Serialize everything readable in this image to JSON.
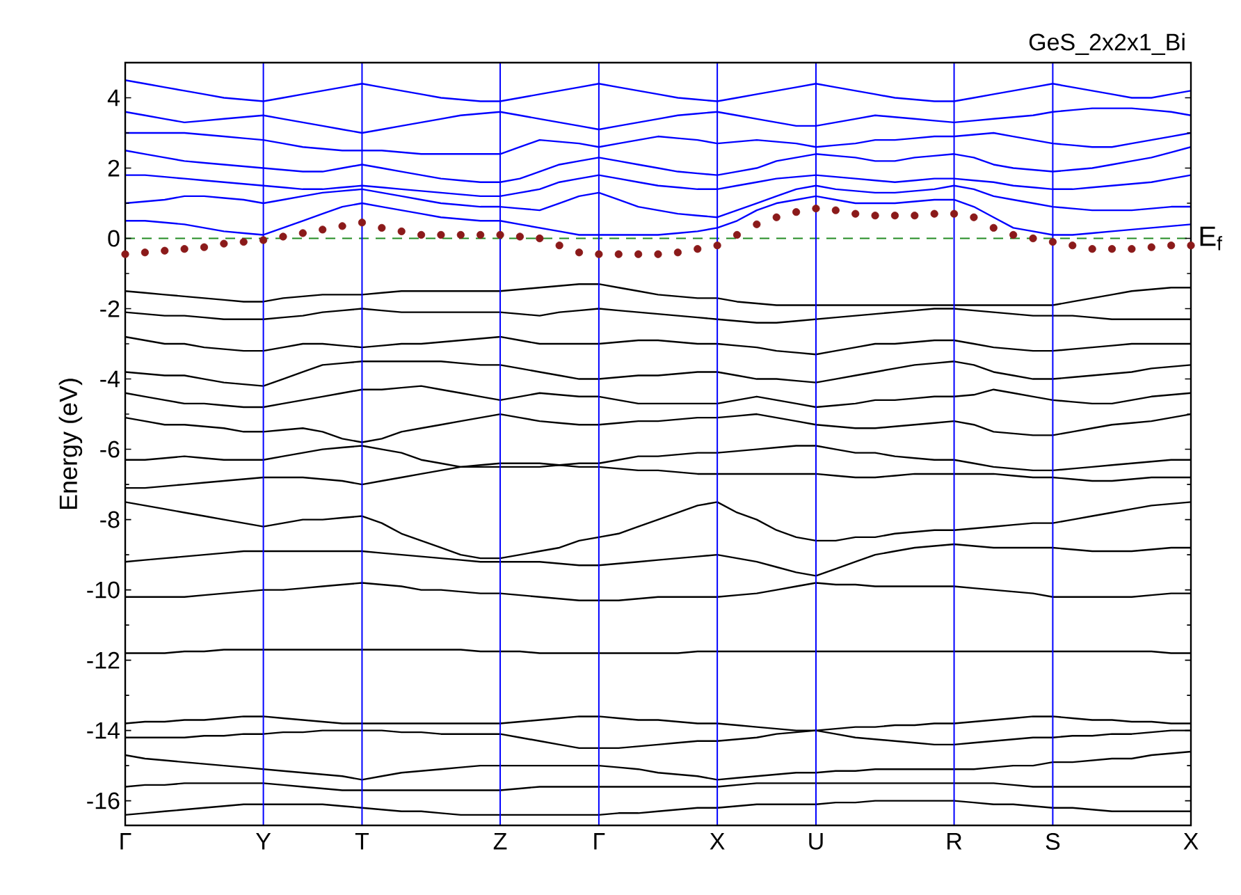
{
  "chart_data": {
    "type": "line",
    "title": "GeS_2x2x1_Bi",
    "ylabel": "Energy (eV)",
    "categories": [
      "Γ",
      null,
      null,
      null,
      null,
      null,
      null,
      "Y",
      null,
      null,
      null,
      null,
      "T",
      null,
      null,
      null,
      null,
      null,
      null,
      "Z",
      null,
      null,
      null,
      null,
      "Γ",
      null,
      null,
      null,
      null,
      null,
      "X",
      null,
      null,
      null,
      null,
      "U",
      null,
      null,
      null,
      null,
      null,
      null,
      "R",
      null,
      null,
      null,
      null,
      "S",
      null,
      null,
      null,
      null,
      null,
      null,
      "X"
    ],
    "ylim": [
      -16.7,
      5
    ],
    "yticks": [
      -16,
      -14,
      -12,
      -10,
      -8,
      -6,
      -4,
      -2,
      0,
      2,
      4
    ],
    "grid": "x",
    "ref_lines": [
      {
        "axis": "y",
        "value": 0,
        "label": "E$_{f}$",
        "color": "#228b22",
        "line_style": "dashed"
      }
    ],
    "series": [
      {
        "color": "#0000ff",
        "values": [
          0.5,
          0.5,
          0.45,
          0.4,
          0.3,
          0.2,
          0.15,
          0.1,
          0.3,
          0.5,
          0.7,
          0.9,
          1.0,
          0.9,
          0.8,
          0.7,
          0.6,
          0.55,
          0.5,
          0.5,
          0.4,
          0.3,
          0.2,
          0.1,
          0.1,
          0.1,
          0.1,
          0.1,
          0.15,
          0.2,
          0.3,
          0.5,
          0.8,
          1.0,
          1.1,
          1.2,
          1.1,
          1.0,
          1.0,
          1.0,
          1.05,
          1.1,
          1.1,
          0.9,
          0.6,
          0.3,
          0.2,
          0.1,
          0.1,
          0.15,
          0.2,
          0.25,
          0.3,
          0.35,
          0.4
        ]
      },
      {
        "color": "#0000ff",
        "values": [
          1.0,
          1.05,
          1.1,
          1.2,
          1.2,
          1.15,
          1.1,
          1.0,
          1.1,
          1.2,
          1.3,
          1.35,
          1.4,
          1.3,
          1.2,
          1.1,
          1.0,
          0.95,
          0.9,
          0.9,
          0.85,
          0.8,
          1.0,
          1.2,
          1.3,
          1.1,
          0.9,
          0.8,
          0.7,
          0.65,
          0.6,
          0.8,
          1.0,
          1.2,
          1.4,
          1.5,
          1.4,
          1.35,
          1.3,
          1.3,
          1.35,
          1.4,
          1.5,
          1.4,
          1.2,
          1.1,
          1.0,
          0.9,
          0.85,
          0.8,
          0.8,
          0.8,
          0.85,
          0.9,
          0.9
        ]
      },
      {
        "color": "#0000ff",
        "values": [
          1.8,
          1.8,
          1.75,
          1.7,
          1.65,
          1.6,
          1.55,
          1.5,
          1.45,
          1.4,
          1.4,
          1.45,
          1.5,
          1.45,
          1.4,
          1.35,
          1.3,
          1.25,
          1.2,
          1.2,
          1.3,
          1.4,
          1.6,
          1.7,
          1.8,
          1.7,
          1.6,
          1.5,
          1.45,
          1.4,
          1.4,
          1.5,
          1.6,
          1.7,
          1.75,
          1.8,
          1.75,
          1.7,
          1.65,
          1.6,
          1.65,
          1.7,
          1.7,
          1.65,
          1.6,
          1.5,
          1.45,
          1.4,
          1.4,
          1.45,
          1.5,
          1.55,
          1.6,
          1.7,
          1.8
        ]
      },
      {
        "color": "#0000ff",
        "values": [
          2.5,
          2.4,
          2.3,
          2.2,
          2.15,
          2.1,
          2.05,
          2.0,
          1.95,
          1.9,
          1.9,
          2.0,
          2.1,
          2.0,
          1.9,
          1.8,
          1.7,
          1.65,
          1.6,
          1.6,
          1.7,
          1.9,
          2.1,
          2.2,
          2.3,
          2.2,
          2.1,
          2.0,
          1.9,
          1.85,
          1.8,
          1.9,
          2.0,
          2.2,
          2.3,
          2.4,
          2.35,
          2.3,
          2.2,
          2.2,
          2.3,
          2.35,
          2.4,
          2.3,
          2.1,
          2.0,
          1.95,
          1.9,
          1.95,
          2.0,
          2.1,
          2.2,
          2.3,
          2.45,
          2.6
        ]
      },
      {
        "color": "#0000ff",
        "values": [
          3.0,
          3.0,
          3.0,
          3.0,
          2.95,
          2.9,
          2.85,
          2.8,
          2.7,
          2.6,
          2.55,
          2.5,
          2.5,
          2.5,
          2.45,
          2.4,
          2.4,
          2.4,
          2.4,
          2.4,
          2.6,
          2.8,
          2.75,
          2.7,
          2.6,
          2.7,
          2.8,
          2.9,
          2.85,
          2.8,
          2.7,
          2.75,
          2.8,
          2.75,
          2.7,
          2.6,
          2.65,
          2.7,
          2.8,
          2.8,
          2.85,
          2.9,
          2.9,
          2.95,
          3.0,
          2.9,
          2.8,
          2.7,
          2.65,
          2.6,
          2.6,
          2.7,
          2.8,
          2.9,
          3.0
        ]
      },
      {
        "color": "#0000ff",
        "values": [
          3.6,
          3.5,
          3.4,
          3.3,
          3.35,
          3.4,
          3.45,
          3.5,
          3.4,
          3.3,
          3.2,
          3.1,
          3.0,
          3.1,
          3.2,
          3.3,
          3.4,
          3.5,
          3.55,
          3.6,
          3.5,
          3.4,
          3.3,
          3.2,
          3.1,
          3.2,
          3.3,
          3.4,
          3.5,
          3.55,
          3.6,
          3.5,
          3.4,
          3.3,
          3.2,
          3.2,
          3.3,
          3.4,
          3.5,
          3.45,
          3.4,
          3.35,
          3.3,
          3.35,
          3.4,
          3.45,
          3.5,
          3.6,
          3.65,
          3.7,
          3.7,
          3.7,
          3.65,
          3.6,
          3.5
        ]
      },
      {
        "color": "#0000ff",
        "values": [
          4.5,
          4.4,
          4.3,
          4.2,
          4.1,
          4.0,
          3.95,
          3.9,
          4.0,
          4.1,
          4.2,
          4.3,
          4.4,
          4.3,
          4.2,
          4.1,
          4.0,
          3.95,
          3.9,
          3.9,
          4.0,
          4.1,
          4.2,
          4.3,
          4.4,
          4.3,
          4.2,
          4.1,
          4.0,
          3.95,
          3.9,
          4.0,
          4.1,
          4.2,
          4.3,
          4.4,
          4.3,
          4.2,
          4.1,
          4.0,
          3.95,
          3.9,
          3.9,
          4.0,
          4.1,
          4.2,
          4.3,
          4.4,
          4.3,
          4.2,
          4.1,
          4.0,
          4.0,
          4.1,
          4.2
        ]
      },
      {
        "color": "#000000",
        "values": [
          -1.5,
          -1.55,
          -1.6,
          -1.65,
          -1.7,
          -1.75,
          -1.8,
          -1.8,
          -1.7,
          -1.65,
          -1.6,
          -1.6,
          -1.6,
          -1.55,
          -1.5,
          -1.5,
          -1.5,
          -1.5,
          -1.5,
          -1.5,
          -1.45,
          -1.4,
          -1.35,
          -1.3,
          -1.3,
          -1.4,
          -1.5,
          -1.6,
          -1.65,
          -1.7,
          -1.7,
          -1.8,
          -1.85,
          -1.9,
          -1.9,
          -1.9,
          -1.9,
          -1.9,
          -1.9,
          -1.9,
          -1.9,
          -1.9,
          -1.9,
          -1.9,
          -1.9,
          -1.9,
          -1.9,
          -1.9,
          -1.8,
          -1.7,
          -1.6,
          -1.5,
          -1.45,
          -1.4,
          -1.4
        ]
      },
      {
        "color": "#000000",
        "values": [
          -2.1,
          -2.15,
          -2.2,
          -2.2,
          -2.25,
          -2.3,
          -2.3,
          -2.3,
          -2.25,
          -2.2,
          -2.1,
          -2.05,
          -2.0,
          -2.05,
          -2.1,
          -2.1,
          -2.1,
          -2.1,
          -2.1,
          -2.1,
          -2.15,
          -2.2,
          -2.1,
          -2.05,
          -2.0,
          -2.05,
          -2.1,
          -2.15,
          -2.2,
          -2.25,
          -2.3,
          -2.35,
          -2.4,
          -2.4,
          -2.35,
          -2.3,
          -2.25,
          -2.2,
          -2.15,
          -2.1,
          -2.05,
          -2.0,
          -2.0,
          -2.05,
          -2.1,
          -2.15,
          -2.2,
          -2.2,
          -2.2,
          -2.25,
          -2.3,
          -2.3,
          -2.3,
          -2.3,
          -2.3
        ]
      },
      {
        "color": "#000000",
        "values": [
          -2.8,
          -2.9,
          -3.0,
          -3.0,
          -3.1,
          -3.15,
          -3.2,
          -3.2,
          -3.1,
          -3.0,
          -3.0,
          -3.05,
          -3.1,
          -3.05,
          -3.0,
          -3.0,
          -2.95,
          -2.9,
          -2.85,
          -2.8,
          -2.9,
          -3.0,
          -3.0,
          -3.0,
          -3.0,
          -2.95,
          -2.9,
          -2.9,
          -2.95,
          -3.0,
          -3.0,
          -3.05,
          -3.1,
          -3.2,
          -3.25,
          -3.3,
          -3.2,
          -3.1,
          -3.0,
          -3.0,
          -2.95,
          -2.9,
          -2.9,
          -3.0,
          -3.1,
          -3.15,
          -3.2,
          -3.2,
          -3.15,
          -3.1,
          -3.05,
          -3.0,
          -3.0,
          -3.0,
          -3.0
        ]
      },
      {
        "color": "#000000",
        "values": [
          -3.8,
          -3.85,
          -3.9,
          -3.9,
          -4.0,
          -4.1,
          -4.15,
          -4.2,
          -4.0,
          -3.8,
          -3.6,
          -3.55,
          -3.5,
          -3.5,
          -3.5,
          -3.5,
          -3.5,
          -3.55,
          -3.6,
          -3.6,
          -3.7,
          -3.8,
          -3.9,
          -4.0,
          -4.0,
          -3.95,
          -3.9,
          -3.9,
          -3.85,
          -3.8,
          -3.8,
          -3.9,
          -4.0,
          -4.0,
          -4.05,
          -4.1,
          -4.0,
          -3.9,
          -3.8,
          -3.7,
          -3.6,
          -3.55,
          -3.5,
          -3.6,
          -3.8,
          -3.9,
          -4.0,
          -4.0,
          -3.95,
          -3.9,
          -3.85,
          -3.8,
          -3.7,
          -3.65,
          -3.6
        ]
      },
      {
        "color": "#000000",
        "values": [
          -4.4,
          -4.5,
          -4.6,
          -4.7,
          -4.7,
          -4.75,
          -4.8,
          -4.8,
          -4.7,
          -4.6,
          -4.5,
          -4.4,
          -4.3,
          -4.3,
          -4.25,
          -4.2,
          -4.3,
          -4.4,
          -4.5,
          -4.6,
          -4.5,
          -4.4,
          -4.45,
          -4.5,
          -4.5,
          -4.6,
          -4.7,
          -4.7,
          -4.7,
          -4.7,
          -4.7,
          -4.6,
          -4.5,
          -4.6,
          -4.7,
          -4.8,
          -4.75,
          -4.7,
          -4.6,
          -4.6,
          -4.55,
          -4.5,
          -4.5,
          -4.45,
          -4.3,
          -4.4,
          -4.5,
          -4.6,
          -4.65,
          -4.7,
          -4.7,
          -4.6,
          -4.5,
          -4.45,
          -4.4
        ]
      },
      {
        "color": "#000000",
        "values": [
          -5.1,
          -5.2,
          -5.3,
          -5.3,
          -5.35,
          -5.4,
          -5.5,
          -5.5,
          -5.45,
          -5.4,
          -5.5,
          -5.7,
          -5.8,
          -5.7,
          -5.5,
          -5.4,
          -5.3,
          -5.2,
          -5.1,
          -5.0,
          -5.1,
          -5.2,
          -5.25,
          -5.3,
          -5.3,
          -5.25,
          -5.2,
          -5.2,
          -5.15,
          -5.1,
          -5.1,
          -5.05,
          -5.0,
          -5.1,
          -5.2,
          -5.3,
          -5.35,
          -5.4,
          -5.4,
          -5.35,
          -5.3,
          -5.25,
          -5.2,
          -5.3,
          -5.5,
          -5.55,
          -5.6,
          -5.6,
          -5.5,
          -5.4,
          -5.3,
          -5.25,
          -5.2,
          -5.1,
          -5.0
        ]
      },
      {
        "color": "#000000",
        "values": [
          -6.3,
          -6.3,
          -6.25,
          -6.2,
          -6.25,
          -6.3,
          -6.3,
          -6.3,
          -6.2,
          -6.1,
          -6.0,
          -5.95,
          -5.9,
          -6.0,
          -6.1,
          -6.3,
          -6.4,
          -6.5,
          -6.5,
          -6.5,
          -6.5,
          -6.5,
          -6.45,
          -6.4,
          -6.4,
          -6.3,
          -6.2,
          -6.2,
          -6.15,
          -6.1,
          -6.1,
          -6.05,
          -6.0,
          -5.95,
          -5.9,
          -5.9,
          -6.0,
          -6.1,
          -6.1,
          -6.2,
          -6.25,
          -6.3,
          -6.3,
          -6.4,
          -6.5,
          -6.55,
          -6.6,
          -6.6,
          -6.55,
          -6.5,
          -6.45,
          -6.4,
          -6.35,
          -6.3,
          -6.3
        ]
      },
      {
        "color": "#000000",
        "values": [
          -7.1,
          -7.1,
          -7.05,
          -7.0,
          -6.95,
          -6.9,
          -6.85,
          -6.8,
          -6.8,
          -6.8,
          -6.85,
          -6.9,
          -7.0,
          -6.9,
          -6.8,
          -6.7,
          -6.6,
          -6.5,
          -6.45,
          -6.4,
          -6.4,
          -6.4,
          -6.45,
          -6.5,
          -6.5,
          -6.55,
          -6.6,
          -6.6,
          -6.65,
          -6.7,
          -6.7,
          -6.7,
          -6.7,
          -6.7,
          -6.7,
          -6.7,
          -6.75,
          -6.8,
          -6.8,
          -6.75,
          -6.7,
          -6.7,
          -6.7,
          -6.7,
          -6.7,
          -6.75,
          -6.8,
          -6.8,
          -6.85,
          -6.9,
          -6.9,
          -6.85,
          -6.8,
          -6.8,
          -6.8
        ]
      },
      {
        "color": "#000000",
        "values": [
          -7.5,
          -7.6,
          -7.7,
          -7.8,
          -7.9,
          -8.0,
          -8.1,
          -8.2,
          -8.1,
          -8.0,
          -8.0,
          -7.95,
          -7.9,
          -8.1,
          -8.4,
          -8.6,
          -8.8,
          -9.0,
          -9.1,
          -9.1,
          -9.0,
          -8.9,
          -8.8,
          -8.6,
          -8.5,
          -8.4,
          -8.2,
          -8.0,
          -7.8,
          -7.6,
          -7.5,
          -7.8,
          -8.0,
          -8.3,
          -8.5,
          -8.6,
          -8.6,
          -8.5,
          -8.5,
          -8.4,
          -8.35,
          -8.3,
          -8.3,
          -8.25,
          -8.2,
          -8.15,
          -8.1,
          -8.1,
          -8.0,
          -7.9,
          -7.8,
          -7.7,
          -7.6,
          -7.55,
          -7.5
        ]
      },
      {
        "color": "#000000",
        "values": [
          -9.2,
          -9.15,
          -9.1,
          -9.05,
          -9.0,
          -8.95,
          -8.9,
          -8.9,
          -8.9,
          -8.9,
          -8.9,
          -8.9,
          -8.9,
          -8.95,
          -9.0,
          -9.05,
          -9.1,
          -9.15,
          -9.2,
          -9.2,
          -9.2,
          -9.2,
          -9.25,
          -9.3,
          -9.3,
          -9.25,
          -9.2,
          -9.15,
          -9.1,
          -9.05,
          -9.0,
          -9.1,
          -9.2,
          -9.35,
          -9.5,
          -9.6,
          -9.4,
          -9.2,
          -9.0,
          -8.9,
          -8.8,
          -8.75,
          -8.7,
          -8.75,
          -8.8,
          -8.8,
          -8.8,
          -8.8,
          -8.85,
          -8.9,
          -8.9,
          -8.9,
          -8.85,
          -8.8,
          -8.8
        ]
      },
      {
        "color": "#000000",
        "values": [
          -10.2,
          -10.2,
          -10.2,
          -10.2,
          -10.15,
          -10.1,
          -10.05,
          -10.0,
          -10.0,
          -9.95,
          -9.9,
          -9.85,
          -9.8,
          -9.85,
          -9.9,
          -10.0,
          -10.0,
          -10.05,
          -10.1,
          -10.1,
          -10.15,
          -10.2,
          -10.25,
          -10.3,
          -10.3,
          -10.3,
          -10.25,
          -10.2,
          -10.2,
          -10.2,
          -10.2,
          -10.15,
          -10.1,
          -10.0,
          -9.9,
          -9.8,
          -9.85,
          -9.85,
          -9.9,
          -9.9,
          -9.9,
          -9.9,
          -9.9,
          -9.95,
          -10.0,
          -10.05,
          -10.1,
          -10.2,
          -10.2,
          -10.2,
          -10.2,
          -10.2,
          -10.15,
          -10.1,
          -10.1
        ]
      },
      {
        "color": "#000000",
        "values": [
          -11.8,
          -11.8,
          -11.8,
          -11.75,
          -11.75,
          -11.7,
          -11.7,
          -11.7,
          -11.7,
          -11.7,
          -11.7,
          -11.7,
          -11.7,
          -11.7,
          -11.7,
          -11.7,
          -11.7,
          -11.7,
          -11.75,
          -11.75,
          -11.75,
          -11.8,
          -11.8,
          -11.8,
          -11.8,
          -11.8,
          -11.8,
          -11.8,
          -11.8,
          -11.75,
          -11.75,
          -11.75,
          -11.75,
          -11.75,
          -11.75,
          -11.75,
          -11.75,
          -11.75,
          -11.75,
          -11.75,
          -11.75,
          -11.75,
          -11.75,
          -11.75,
          -11.75,
          -11.75,
          -11.75,
          -11.75,
          -11.75,
          -11.75,
          -11.75,
          -11.75,
          -11.75,
          -11.8,
          -11.8
        ]
      },
      {
        "color": "#000000",
        "values": [
          -13.8,
          -13.75,
          -13.75,
          -13.7,
          -13.7,
          -13.65,
          -13.6,
          -13.6,
          -13.65,
          -13.7,
          -13.75,
          -13.8,
          -13.8,
          -13.8,
          -13.8,
          -13.8,
          -13.8,
          -13.8,
          -13.8,
          -13.8,
          -13.75,
          -13.7,
          -13.65,
          -13.6,
          -13.6,
          -13.65,
          -13.7,
          -13.7,
          -13.75,
          -13.8,
          -13.8,
          -13.85,
          -13.9,
          -13.95,
          -14.0,
          -14.0,
          -13.95,
          -13.9,
          -13.9,
          -13.85,
          -13.85,
          -13.8,
          -13.8,
          -13.75,
          -13.7,
          -13.65,
          -13.6,
          -13.6,
          -13.65,
          -13.7,
          -13.7,
          -13.75,
          -13.75,
          -13.8,
          -13.8
        ]
      },
      {
        "color": "#000000",
        "values": [
          -14.2,
          -14.2,
          -14.2,
          -14.2,
          -14.15,
          -14.15,
          -14.1,
          -14.1,
          -14.05,
          -14.05,
          -14.0,
          -14.0,
          -14.0,
          -14.0,
          -14.05,
          -14.05,
          -14.1,
          -14.1,
          -14.1,
          -14.1,
          -14.2,
          -14.3,
          -14.4,
          -14.5,
          -14.5,
          -14.5,
          -14.45,
          -14.4,
          -14.35,
          -14.3,
          -14.3,
          -14.25,
          -14.2,
          -14.1,
          -14.05,
          -14.0,
          -14.1,
          -14.2,
          -14.25,
          -14.3,
          -14.35,
          -14.4,
          -14.4,
          -14.35,
          -14.3,
          -14.25,
          -14.2,
          -14.2,
          -14.15,
          -14.15,
          -14.1,
          -14.1,
          -14.05,
          -14.0,
          -14.0
        ]
      },
      {
        "color": "#000000",
        "values": [
          -14.7,
          -14.8,
          -14.85,
          -14.9,
          -14.95,
          -15.0,
          -15.05,
          -15.1,
          -15.15,
          -15.2,
          -15.25,
          -15.3,
          -15.4,
          -15.3,
          -15.2,
          -15.15,
          -15.1,
          -15.05,
          -15.0,
          -15.0,
          -15.0,
          -15.0,
          -15.0,
          -15.0,
          -15.0,
          -15.05,
          -15.1,
          -15.2,
          -15.25,
          -15.3,
          -15.4,
          -15.35,
          -15.3,
          -15.25,
          -15.2,
          -15.2,
          -15.15,
          -15.15,
          -15.1,
          -15.1,
          -15.1,
          -15.1,
          -15.1,
          -15.1,
          -15.05,
          -15.0,
          -15.0,
          -14.9,
          -14.9,
          -14.85,
          -14.8,
          -14.8,
          -14.7,
          -14.65,
          -14.6
        ]
      },
      {
        "color": "#000000",
        "values": [
          -15.6,
          -15.55,
          -15.55,
          -15.5,
          -15.5,
          -15.5,
          -15.5,
          -15.5,
          -15.55,
          -15.6,
          -15.65,
          -15.7,
          -15.7,
          -15.7,
          -15.7,
          -15.7,
          -15.7,
          -15.7,
          -15.7,
          -15.7,
          -15.65,
          -15.6,
          -15.6,
          -15.6,
          -15.6,
          -15.6,
          -15.6,
          -15.6,
          -15.6,
          -15.6,
          -15.6,
          -15.55,
          -15.5,
          -15.5,
          -15.5,
          -15.5,
          -15.5,
          -15.5,
          -15.5,
          -15.5,
          -15.5,
          -15.5,
          -15.5,
          -15.5,
          -15.5,
          -15.55,
          -15.6,
          -15.6,
          -15.6,
          -15.6,
          -15.6,
          -15.6,
          -15.6,
          -15.6,
          -15.6
        ]
      },
      {
        "color": "#000000",
        "values": [
          -16.4,
          -16.35,
          -16.3,
          -16.25,
          -16.2,
          -16.15,
          -16.1,
          -16.1,
          -16.1,
          -16.1,
          -16.1,
          -16.15,
          -16.2,
          -16.25,
          -16.3,
          -16.3,
          -16.35,
          -16.4,
          -16.4,
          -16.4,
          -16.4,
          -16.4,
          -16.4,
          -16.4,
          -16.4,
          -16.35,
          -16.35,
          -16.3,
          -16.25,
          -16.2,
          -16.2,
          -16.15,
          -16.1,
          -16.1,
          -16.1,
          -16.1,
          -16.05,
          -16.05,
          -16.0,
          -16.0,
          -16.0,
          -16.0,
          -16.0,
          -16.05,
          -16.1,
          -16.1,
          -16.15,
          -16.2,
          -16.2,
          -16.25,
          -16.3,
          -16.3,
          -16.3,
          -16.3,
          -16.3
        ]
      },
      {
        "type": "scatter",
        "marker": "circle",
        "color": "#8b1a1a",
        "values": [
          -0.45,
          -0.4,
          -0.35,
          -0.3,
          -0.25,
          -0.15,
          -0.1,
          -0.05,
          0.05,
          0.15,
          0.25,
          0.35,
          0.45,
          0.3,
          0.2,
          0.1,
          0.1,
          0.1,
          0.1,
          0.1,
          0.05,
          0.0,
          -0.2,
          -0.4,
          -0.45,
          -0.45,
          -0.45,
          -0.45,
          -0.4,
          -0.3,
          -0.2,
          0.1,
          0.4,
          0.6,
          0.75,
          0.85,
          0.8,
          0.7,
          0.65,
          0.65,
          0.65,
          0.7,
          0.7,
          0.6,
          0.3,
          0.1,
          0.0,
          -0.1,
          -0.2,
          -0.3,
          -0.3,
          -0.3,
          -0.25,
          -0.2,
          -0.2
        ]
      }
    ]
  }
}
